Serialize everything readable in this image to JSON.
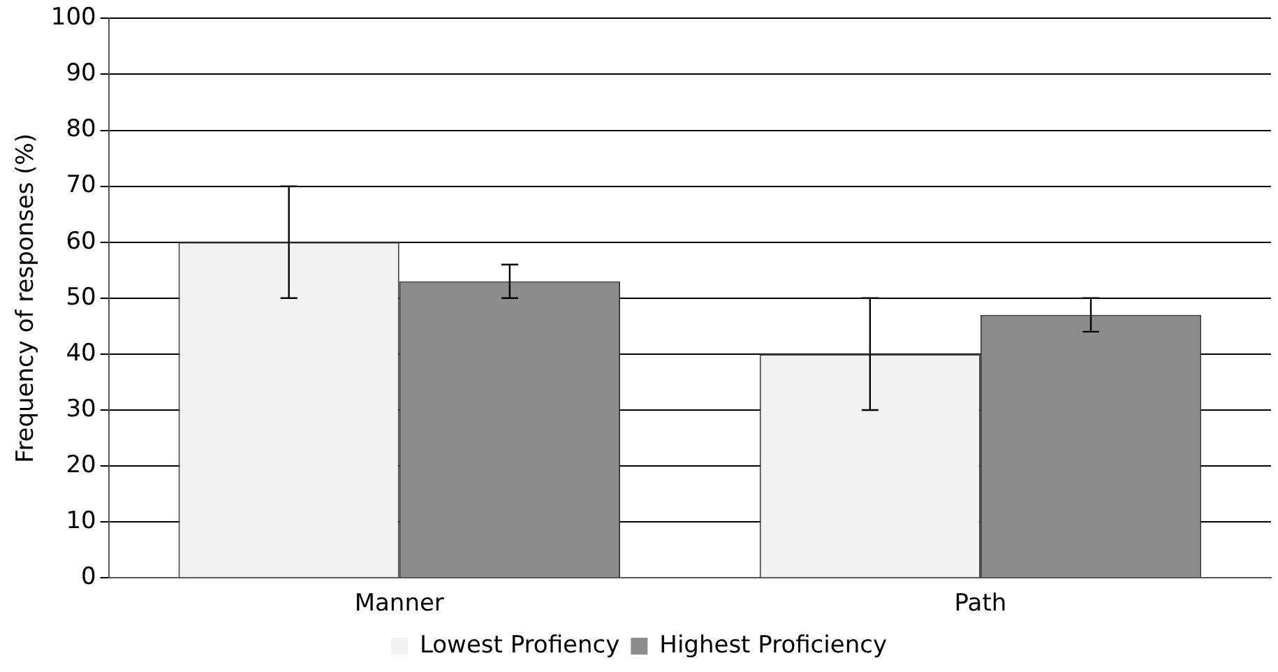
{
  "chart_data": {
    "type": "bar",
    "ylabel": "Frequency of responses (%)",
    "categories": [
      "Manner",
      "Path"
    ],
    "series": [
      {
        "name": "Lowest Profiency",
        "color": "#f2f2f2",
        "values": [
          60,
          40
        ],
        "errors": [
          10,
          10
        ]
      },
      {
        "name": "Highest Proficiency",
        "color": "#8c8c8c",
        "values": [
          53,
          47
        ],
        "errors": [
          [
            50,
            56
          ],
          [
            44,
            50
          ]
        ]
      }
    ],
    "ylim": [
      0,
      100
    ],
    "yticks": [
      0,
      10,
      20,
      30,
      40,
      50,
      60,
      70,
      80,
      90,
      100
    ],
    "grid": "y",
    "legend": "bottom"
  }
}
